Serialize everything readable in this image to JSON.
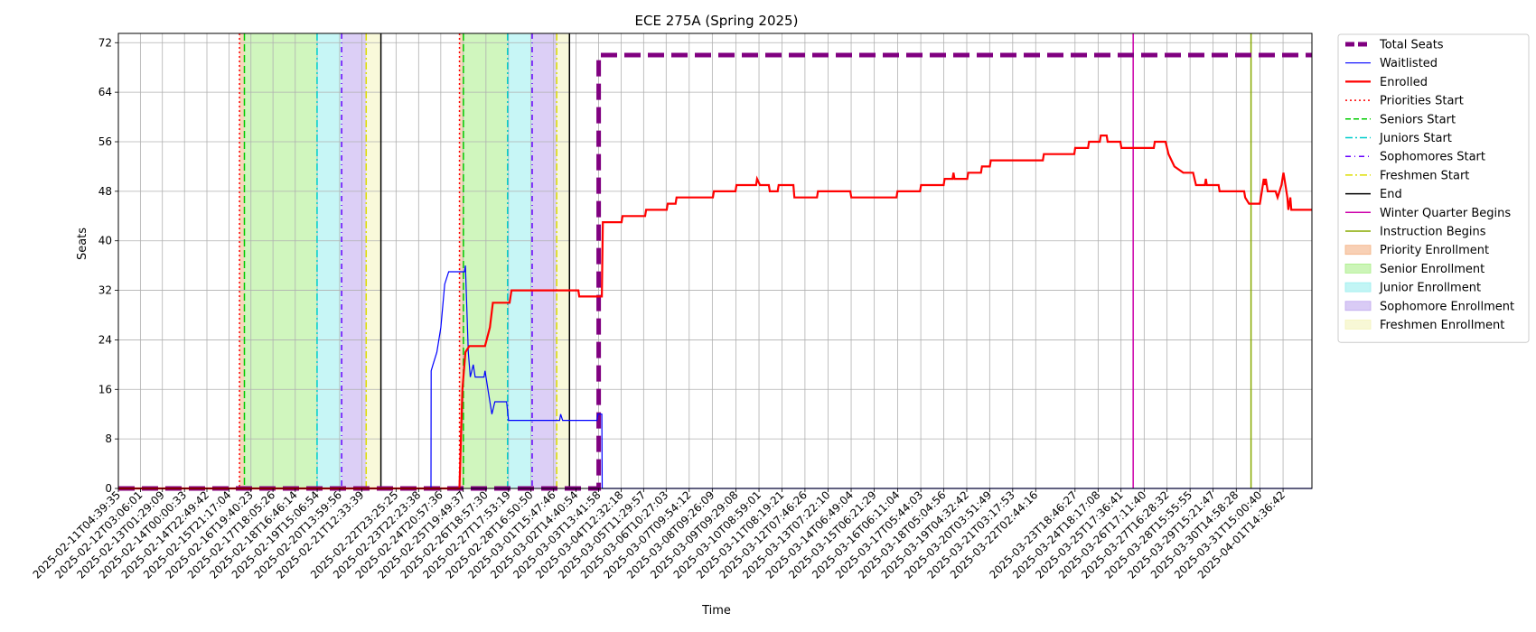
{
  "chart_data": {
    "type": "line",
    "title": "ECE 275A (Spring 2025)",
    "xlabel": "Time",
    "ylabel": "Seats",
    "ylim": [
      0,
      73.5
    ],
    "yticks": [
      0,
      8,
      16,
      24,
      32,
      40,
      48,
      56,
      64,
      72
    ],
    "xlim": [
      "2025-02-11T04:39:35",
      "2025-04-02T20:00:00"
    ],
    "x_tick_labels": [
      "2025-02-11T04:39:35",
      "2025-02-12T03:06:01",
      "2025-02-13T01:29:09",
      "2025-02-14T00:00:33",
      "2025-02-14T22:49:42",
      "2025-02-15T21:17:04",
      "2025-02-16T19:40:23",
      "2025-02-17T18:05:26",
      "2025-02-18T16:46:14",
      "2025-02-19T15:06:54",
      "2025-02-20T13:59:56",
      "2025-02-21T12:33:39",
      "2025-02-22T23:25:25",
      "2025-02-23T22:23:38",
      "2025-02-24T20:57:36",
      "2025-02-25T19:49:37",
      "2025-02-26T18:57:30",
      "2025-02-27T17:53:19",
      "2025-02-28T16:50:50",
      "2025-03-01T15:47:46",
      "2025-03-02T14:40:54",
      "2025-03-03T13:41:58",
      "2025-03-04T12:32:18",
      "2025-03-05T11:29:57",
      "2025-03-06T10:27:03",
      "2025-03-07T09:54:12",
      "2025-03-08T09:26:09",
      "2025-03-09T09:29:08",
      "2025-03-10T08:59:01",
      "2025-03-11T08:19:21",
      "2025-03-12T07:46:26",
      "2025-03-13T07:22:10",
      "2025-03-14T06:49:04",
      "2025-03-15T06:21:29",
      "2025-03-16T06:11:04",
      "2025-03-17T05:44:03",
      "2025-03-18T05:04:56",
      "2025-03-19T04:32:42",
      "2025-03-20T03:51:49",
      "2025-03-21T03:17:53",
      "2025-03-22T02:44:16",
      "2025-03-23T18:46:27",
      "2025-03-24T18:17:08",
      "2025-03-25T17:36:41",
      "2025-03-26T17:11:40",
      "2025-03-27T16:28:32",
      "2025-03-28T15:55:55",
      "2025-03-29T15:21:47",
      "2025-03-30T14:58:28",
      "2025-03-31T15:00:40",
      "2025-04-01T14:36:42"
    ],
    "grid": true,
    "legend_position": "outside-right",
    "series": [
      {
        "name": "Total Seats",
        "color": "#800080",
        "style": "dashed",
        "points": [
          [
            "2025-02-11T04:39:35",
            0
          ],
          [
            "2025-03-03T13:41:58",
            0
          ],
          [
            "2025-03-03T13:42:00",
            70
          ],
          [
            "2025-04-02T20:00:00",
            70
          ]
        ]
      },
      {
        "name": "Waitlisted",
        "color": "#0000ff",
        "style": "solid",
        "points": [
          [
            "2025-02-11T04:39:35",
            0
          ],
          [
            "2025-02-24T11:00:00",
            0
          ],
          [
            "2025-02-24T11:10:00",
            19
          ],
          [
            "2025-02-24T13:00:00",
            20
          ],
          [
            "2025-02-24T17:00:00",
            22
          ],
          [
            "2025-02-24T21:00:00",
            26
          ],
          [
            "2025-02-25T01:00:00",
            33
          ],
          [
            "2025-02-25T05:00:00",
            35
          ],
          [
            "2025-02-25T21:00:00",
            35
          ],
          [
            "2025-02-25T22:00:00",
            36
          ],
          [
            "2025-02-26T01:00:00",
            22
          ],
          [
            "2025-02-26T03:00:00",
            18
          ],
          [
            "2025-02-26T06:00:00",
            20
          ],
          [
            "2025-02-26T08:00:00",
            18
          ],
          [
            "2025-02-26T17:00:00",
            18
          ],
          [
            "2025-02-26T18:00:00",
            19
          ],
          [
            "2025-02-26T22:00:00",
            15
          ],
          [
            "2025-02-27T01:00:00",
            12
          ],
          [
            "2025-02-27T04:00:00",
            14
          ],
          [
            "2025-02-27T16:00:00",
            14
          ],
          [
            "2025-02-27T17:53:19",
            11
          ],
          [
            "2025-03-01T22:00:00",
            11
          ],
          [
            "2025-03-01T23:00:00",
            12
          ],
          [
            "2025-03-02T01:00:00",
            11
          ],
          [
            "2025-03-03T12:00:00",
            11
          ],
          [
            "2025-03-03T13:00:00",
            12
          ],
          [
            "2025-03-03T17:00:00",
            12
          ],
          [
            "2025-03-03T17:20:00",
            0
          ],
          [
            "2025-04-02T20:00:00",
            0
          ]
        ]
      },
      {
        "name": "Enrolled",
        "color": "#ff0000",
        "style": "solid",
        "points": [
          [
            "2025-02-11T04:39:35",
            0
          ],
          [
            "2025-02-25T16:00:00",
            0
          ],
          [
            "2025-02-25T19:00:00",
            16
          ],
          [
            "2025-02-25T22:00:00",
            22
          ],
          [
            "2025-02-26T02:00:00",
            23
          ],
          [
            "2025-02-26T18:00:00",
            23
          ],
          [
            "2025-02-26T23:00:00",
            26
          ],
          [
            "2025-02-27T02:00:00",
            30
          ],
          [
            "2025-02-27T19:00:00",
            30
          ],
          [
            "2025-02-27T21:00:00",
            32
          ],
          [
            "2025-03-02T17:00:00",
            32
          ],
          [
            "2025-03-02T18:00:00",
            31
          ],
          [
            "2025-03-03T17:00:00",
            31
          ],
          [
            "2025-03-03T18:00:00",
            43
          ],
          [
            "2025-03-04T13:00:00",
            43
          ],
          [
            "2025-03-04T14:00:00",
            44
          ],
          [
            "2025-03-05T13:00:00",
            44
          ],
          [
            "2025-03-05T14:00:00",
            45
          ],
          [
            "2025-03-06T11:00:00",
            45
          ],
          [
            "2025-03-06T12:00:00",
            46
          ],
          [
            "2025-03-06T20:00:00",
            46
          ],
          [
            "2025-03-06T21:00:00",
            47
          ],
          [
            "2025-03-08T10:00:00",
            47
          ],
          [
            "2025-03-08T11:00:00",
            48
          ],
          [
            "2025-03-09T09:00:00",
            48
          ],
          [
            "2025-03-09T10:00:00",
            49
          ],
          [
            "2025-03-10T06:00:00",
            49
          ],
          [
            "2025-03-10T07:00:00",
            50
          ],
          [
            "2025-03-10T10:00:00",
            49
          ],
          [
            "2025-03-10T19:00:00",
            49
          ],
          [
            "2025-03-10T20:00:00",
            48
          ],
          [
            "2025-03-11T04:00:00",
            48
          ],
          [
            "2025-03-11T05:00:00",
            49
          ],
          [
            "2025-03-11T20:00:00",
            49
          ],
          [
            "2025-03-11T21:00:00",
            47
          ],
          [
            "2025-03-12T20:00:00",
            47
          ],
          [
            "2025-03-12T21:00:00",
            48
          ],
          [
            "2025-03-14T06:00:00",
            48
          ],
          [
            "2025-03-14T07:00:00",
            47
          ],
          [
            "2025-03-16T05:00:00",
            47
          ],
          [
            "2025-03-16T06:00:00",
            48
          ],
          [
            "2025-03-17T05:00:00",
            48
          ],
          [
            "2025-03-17T06:00:00",
            49
          ],
          [
            "2025-03-18T05:00:00",
            49
          ],
          [
            "2025-03-18T06:00:00",
            50
          ],
          [
            "2025-03-18T14:00:00",
            50
          ],
          [
            "2025-03-18T15:00:00",
            51
          ],
          [
            "2025-03-18T16:00:00",
            50
          ],
          [
            "2025-03-19T05:00:00",
            50
          ],
          [
            "2025-03-19T06:00:00",
            51
          ],
          [
            "2025-03-19T19:00:00",
            51
          ],
          [
            "2025-03-19T20:00:00",
            52
          ],
          [
            "2025-03-20T04:00:00",
            52
          ],
          [
            "2025-03-20T05:00:00",
            53
          ],
          [
            "2025-03-22T10:00:00",
            53
          ],
          [
            "2025-03-22T11:00:00",
            54
          ],
          [
            "2025-03-23T18:00:00",
            54
          ],
          [
            "2025-03-23T19:00:00",
            55
          ],
          [
            "2025-03-24T08:00:00",
            55
          ],
          [
            "2025-03-24T09:00:00",
            56
          ],
          [
            "2025-03-24T20:00:00",
            56
          ],
          [
            "2025-03-24T21:00:00",
            57
          ],
          [
            "2025-03-25T03:00:00",
            57
          ],
          [
            "2025-03-25T04:00:00",
            56
          ],
          [
            "2025-03-25T17:00:00",
            56
          ],
          [
            "2025-03-25T18:00:00",
            55
          ],
          [
            "2025-03-27T03:00:00",
            55
          ],
          [
            "2025-03-27T04:00:00",
            56
          ],
          [
            "2025-03-27T15:00:00",
            56
          ],
          [
            "2025-03-27T18:00:00",
            54
          ],
          [
            "2025-03-28T00:00:00",
            52
          ],
          [
            "2025-03-28T09:00:00",
            51
          ],
          [
            "2025-03-28T19:00:00",
            51
          ],
          [
            "2025-03-28T22:00:00",
            49
          ],
          [
            "2025-03-29T07:00:00",
            49
          ],
          [
            "2025-03-29T08:00:00",
            50
          ],
          [
            "2025-03-29T09:00:00",
            49
          ],
          [
            "2025-03-29T21:00:00",
            49
          ],
          [
            "2025-03-29T22:00:00",
            48
          ],
          [
            "2025-03-30T23:00:00",
            48
          ],
          [
            "2025-03-31T00:00:00",
            47
          ],
          [
            "2025-03-31T04:00:00",
            46
          ],
          [
            "2025-03-31T15:00:00",
            46
          ],
          [
            "2025-03-31T17:00:00",
            48
          ],
          [
            "2025-03-31T19:00:00",
            50
          ],
          [
            "2025-03-31T20:00:00",
            49
          ],
          [
            "2025-03-31T21:00:00",
            50
          ],
          [
            "2025-03-31T23:00:00",
            48
          ],
          [
            "2025-04-01T07:00:00",
            48
          ],
          [
            "2025-04-01T09:00:00",
            47
          ],
          [
            "2025-04-01T13:00:00",
            49
          ],
          [
            "2025-04-01T15:00:00",
            51
          ],
          [
            "2025-04-01T17:00:00",
            49
          ],
          [
            "2025-04-01T19:00:00",
            47
          ],
          [
            "2025-04-01T20:00:00",
            45
          ],
          [
            "2025-04-01T22:00:00",
            47
          ],
          [
            "2025-04-01T23:00:00",
            45
          ],
          [
            "2025-04-02T20:00:00",
            45
          ]
        ]
      }
    ],
    "vertical_lines": [
      {
        "name": "Priorities Start",
        "color": "#ff0000",
        "style": "dotted",
        "x": [
          "2025-02-16T08:00:00",
          "2025-02-25T16:00:00"
        ]
      },
      {
        "name": "Seniors Start",
        "color": "#00cc00",
        "style": "dashed",
        "x": [
          "2025-02-16T13:00:00",
          "2025-02-25T20:00:00"
        ]
      },
      {
        "name": "Juniors Start",
        "color": "#00cccc",
        "style": "dashdot",
        "x": [
          "2025-02-19T15:00:00",
          "2025-02-27T17:00:00"
        ]
      },
      {
        "name": "Sophomores Start",
        "color": "#6600ff",
        "style": "dashdot2",
        "x": [
          "2025-02-20T16:00:00",
          "2025-02-28T18:00:00"
        ]
      },
      {
        "name": "Freshmen Start",
        "color": "#dddd00",
        "style": "dashdot",
        "x": [
          "2025-02-21T17:00:00",
          "2025-03-01T19:00:00"
        ]
      },
      {
        "name": "End",
        "color": "#000000",
        "style": "solid",
        "x": [
          "2025-02-22T08:00:00",
          "2025-03-02T08:00:00"
        ]
      },
      {
        "name": "Winter Quarter Begins",
        "color": "#cc00aa",
        "style": "solid",
        "x": [
          "2025-03-26T06:00:00"
        ]
      },
      {
        "name": "Instruction Begins",
        "color": "#88aa00",
        "style": "solid",
        "x": [
          "2025-03-31T06:00:00"
        ]
      }
    ],
    "shaded_regions": [
      {
        "name": "Priority Enrollment",
        "color": "#f4b183",
        "ranges": [
          [
            "2025-02-16T08:00:00",
            "2025-02-16T13:00:00"
          ],
          [
            "2025-02-25T16:00:00",
            "2025-02-25T20:00:00"
          ]
        ]
      },
      {
        "name": "Senior Enrollment",
        "color": "#aaee88",
        "ranges": [
          [
            "2025-02-16T13:00:00",
            "2025-02-19T15:00:00"
          ],
          [
            "2025-02-25T20:00:00",
            "2025-02-27T17:00:00"
          ]
        ]
      },
      {
        "name": "Junior Enrollment",
        "color": "#99eeee",
        "ranges": [
          [
            "2025-02-19T15:00:00",
            "2025-02-20T16:00:00"
          ],
          [
            "2025-02-27T17:00:00",
            "2025-02-28T18:00:00"
          ]
        ]
      },
      {
        "name": "Sophomore Enrollment",
        "color": "#c0a8ee",
        "ranges": [
          [
            "2025-02-20T16:00:00",
            "2025-02-21T17:00:00"
          ],
          [
            "2025-02-28T18:00:00",
            "2025-03-01T19:00:00"
          ]
        ]
      },
      {
        "name": "Freshmen Enrollment",
        "color": "#f4f4bb",
        "ranges": [
          [
            "2025-02-21T17:00:00",
            "2025-02-22T08:00:00"
          ],
          [
            "2025-03-01T19:00:00",
            "2025-03-02T08:00:00"
          ]
        ]
      }
    ],
    "legend": [
      {
        "label": "Total Seats",
        "kind": "line",
        "color": "#800080",
        "style": "dashed",
        "width": 5
      },
      {
        "label": "Waitlisted",
        "kind": "line",
        "color": "#0000ff",
        "style": "solid",
        "width": 1.2
      },
      {
        "label": "Enrolled",
        "kind": "line",
        "color": "#ff0000",
        "style": "solid",
        "width": 2.2
      },
      {
        "label": "Priorities Start",
        "kind": "line",
        "color": "#ff0000",
        "style": "dotted",
        "width": 1.5
      },
      {
        "label": "Seniors Start",
        "kind": "line",
        "color": "#00cc00",
        "style": "dashed",
        "width": 1.5
      },
      {
        "label": "Juniors Start",
        "kind": "line",
        "color": "#00cccc",
        "style": "dashdot",
        "width": 1.5
      },
      {
        "label": "Sophomores Start",
        "kind": "line",
        "color": "#6600ff",
        "style": "dashdot2",
        "width": 1.5
      },
      {
        "label": "Freshmen Start",
        "kind": "line",
        "color": "#dddd00",
        "style": "dashdot",
        "width": 1.5
      },
      {
        "label": "End",
        "kind": "line",
        "color": "#000000",
        "style": "solid",
        "width": 1.5
      },
      {
        "label": "Winter Quarter Begins",
        "kind": "line",
        "color": "#cc00aa",
        "style": "solid",
        "width": 1.5
      },
      {
        "label": "Instruction Begins",
        "kind": "line",
        "color": "#88aa00",
        "style": "solid",
        "width": 1.5
      },
      {
        "label": "Priority Enrollment",
        "kind": "patch",
        "color": "#f4b183"
      },
      {
        "label": "Senior Enrollment",
        "kind": "patch",
        "color": "#aaee88"
      },
      {
        "label": "Junior Enrollment",
        "kind": "patch",
        "color": "#99eeee"
      },
      {
        "label": "Sophomore Enrollment",
        "kind": "patch",
        "color": "#c0a8ee"
      },
      {
        "label": "Freshmen Enrollment",
        "kind": "patch",
        "color": "#f4f4bb"
      }
    ]
  }
}
